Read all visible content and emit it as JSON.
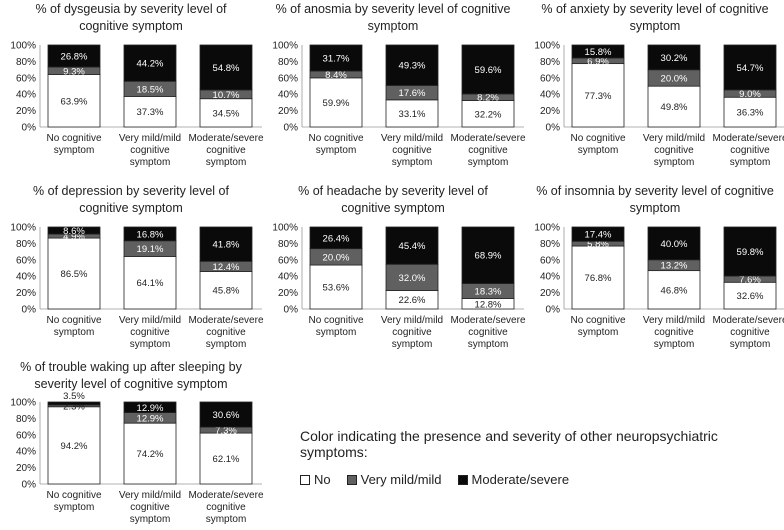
{
  "colors": {
    "no": "#ffffff",
    "mild": "#606060",
    "severe": "#0a0a0a",
    "border": "#222222"
  },
  "chart_data": [
    {
      "type": "bar",
      "stacked": true,
      "title": "% of dysgeusia by severity level of cognitive symptom",
      "title_lines": [
        "% of dysgeusia by severity level of",
        "cognitive symptom"
      ],
      "categories": [
        [
          "No cognitive",
          "symptom"
        ],
        [
          "Very mild/mild",
          "cognitive",
          "symptom"
        ],
        [
          "Moderate/severe",
          "cognitive",
          "symptom"
        ]
      ],
      "ylim": [
        0,
        100
      ],
      "yticks": [
        "0%",
        "20%",
        "40%",
        "60%",
        "80%",
        "100%"
      ],
      "series": [
        {
          "name": "No",
          "values": [
            63.9,
            37.3,
            34.5
          ],
          "labels": [
            "63.9%",
            "37.3%",
            "34.5%"
          ]
        },
        {
          "name": "Very mild/mild",
          "values": [
            9.3,
            18.5,
            10.7
          ],
          "labels": [
            "9.3%",
            "18.5%",
            "10.7%"
          ]
        },
        {
          "name": "Moderate/severe",
          "values": [
            26.8,
            44.2,
            54.8
          ],
          "labels": [
            "26.8%",
            "44.2%",
            "54.8%"
          ]
        }
      ]
    },
    {
      "type": "bar",
      "stacked": true,
      "title": "% of anosmia by severity level of cognitive symptom",
      "title_lines": [
        "% of anosmia by severity level of cognitive",
        "symptom"
      ],
      "categories": [
        [
          "No cognitive",
          "symptom"
        ],
        [
          "Very mild/mild",
          "cognitive",
          "symptom"
        ],
        [
          "Moderate/severe",
          "cognitive",
          "symptom"
        ]
      ],
      "ylim": [
        0,
        100
      ],
      "yticks": [
        "0%",
        "20%",
        "40%",
        "60%",
        "80%",
        "100%"
      ],
      "series": [
        {
          "name": "No",
          "values": [
            59.9,
            33.1,
            32.2
          ],
          "labels": [
            "59.9%",
            "33.1%",
            "32.2%"
          ]
        },
        {
          "name": "Very mild/mild",
          "values": [
            8.4,
            17.6,
            8.2
          ],
          "labels": [
            "8.4%",
            "17.6%",
            "8.2%"
          ]
        },
        {
          "name": "Moderate/severe",
          "values": [
            31.7,
            49.3,
            59.6
          ],
          "labels": [
            "31.7%",
            "49.3%",
            "59.6%"
          ]
        }
      ]
    },
    {
      "type": "bar",
      "stacked": true,
      "title": "% of anxiety by severity level of cognitive symptom",
      "title_lines": [
        "% of anxiety by severity level of cognitive",
        "symptom"
      ],
      "categories": [
        [
          "No cognitive",
          "symptom"
        ],
        [
          "Very mild/mild",
          "cognitive",
          "symptom"
        ],
        [
          "Moderate/severe",
          "cognitive",
          "symptom"
        ]
      ],
      "ylim": [
        0,
        100
      ],
      "yticks": [
        "0%",
        "20%",
        "40%",
        "60%",
        "80%",
        "100%"
      ],
      "series": [
        {
          "name": "No",
          "values": [
            77.3,
            49.8,
            36.3
          ],
          "labels": [
            "77.3%",
            "49.8%",
            "36.3%"
          ]
        },
        {
          "name": "Very mild/mild",
          "values": [
            6.9,
            20.0,
            9.0
          ],
          "labels": [
            "6.9%",
            "20.0%",
            "9.0%"
          ]
        },
        {
          "name": "Moderate/severe",
          "values": [
            15.8,
            30.2,
            54.7
          ],
          "labels": [
            "15.8%",
            "30.2%",
            "54.7%"
          ]
        }
      ]
    },
    {
      "type": "bar",
      "stacked": true,
      "title": "% of depression by severity level of cognitive symptom",
      "title_lines": [
        "% of depression by severity level of",
        "cognitive symptom"
      ],
      "categories": [
        [
          "No cognitive",
          "symptom"
        ],
        [
          "Very mild/mild",
          "cognitive",
          "symptom"
        ],
        [
          "Moderate/severe",
          "cognitive",
          "symptom"
        ]
      ],
      "ylim": [
        0,
        100
      ],
      "yticks": [
        "0%",
        "20%",
        "40%",
        "60%",
        "80%",
        "100%"
      ],
      "series": [
        {
          "name": "No",
          "values": [
            86.5,
            64.1,
            45.8
          ],
          "labels": [
            "86.5%",
            "64.1%",
            "45.8%"
          ]
        },
        {
          "name": "Very mild/mild",
          "values": [
            4.9,
            19.1,
            12.4
          ],
          "labels": [
            "4.9%",
            "19.1%",
            "12.4%"
          ]
        },
        {
          "name": "Moderate/severe",
          "values": [
            8.6,
            16.8,
            41.8
          ],
          "labels": [
            "8.6%",
            "16.8%",
            "41.8%"
          ]
        }
      ]
    },
    {
      "type": "bar",
      "stacked": true,
      "title": "% of headache by severity level of cognitive symptom",
      "title_lines": [
        "% of headache by severity level of",
        "cognitive symptom"
      ],
      "categories": [
        [
          "No cognitive",
          "symptom"
        ],
        [
          "Very mild/mild",
          "cognitive",
          "symptom"
        ],
        [
          "Moderate/severe",
          "cognitive",
          "symptom"
        ]
      ],
      "ylim": [
        0,
        100
      ],
      "yticks": [
        "0%",
        "20%",
        "40%",
        "60%",
        "80%",
        "100%"
      ],
      "series": [
        {
          "name": "No",
          "values": [
            53.6,
            22.6,
            12.8
          ],
          "labels": [
            "53.6%",
            "22.6%",
            "12.8%"
          ]
        },
        {
          "name": "Very mild/mild",
          "values": [
            20.0,
            32.0,
            18.3
          ],
          "labels": [
            "20.0%",
            "32.0%",
            "18.3%"
          ]
        },
        {
          "name": "Moderate/severe",
          "values": [
            26.4,
            45.4,
            68.9
          ],
          "labels": [
            "26.4%",
            "45.4%",
            "68.9%"
          ]
        }
      ]
    },
    {
      "type": "bar",
      "stacked": true,
      "title": "% of insomnia by severity level of cognitive symptom",
      "title_lines": [
        "% of insomnia by severity level of cognitive",
        "symptom"
      ],
      "categories": [
        [
          "No cognitive",
          "symptom"
        ],
        [
          "Very mild/mild",
          "cognitive",
          "symptom"
        ],
        [
          "Moderate/severe",
          "cognitive",
          "symptom"
        ]
      ],
      "ylim": [
        0,
        100
      ],
      "yticks": [
        "0%",
        "20%",
        "40%",
        "60%",
        "80%",
        "100%"
      ],
      "series": [
        {
          "name": "No",
          "values": [
            76.8,
            46.8,
            32.6
          ],
          "labels": [
            "76.8%",
            "46.8%",
            "32.6%"
          ]
        },
        {
          "name": "Very mild/mild",
          "values": [
            5.8,
            13.2,
            7.6
          ],
          "labels": [
            "5.8%",
            "13.2%",
            "7.6%"
          ]
        },
        {
          "name": "Moderate/severe",
          "values": [
            17.4,
            40.0,
            59.8
          ],
          "labels": [
            "17.4%",
            "40.0%",
            "59.8%"
          ]
        }
      ]
    },
    {
      "type": "bar",
      "stacked": true,
      "title": "% of trouble waking up after sleeping by severity level of cognitive symptom",
      "title_lines": [
        "% of trouble waking up after sleeping by",
        "severity level of cognitive symptom"
      ],
      "categories": [
        [
          "No cognitive",
          "symptom"
        ],
        [
          "Very mild/mild",
          "cognitive",
          "symptom"
        ],
        [
          "Moderate/severe",
          "cognitive",
          "symptom"
        ]
      ],
      "ylim": [
        0,
        100
      ],
      "yticks": [
        "0%",
        "20%",
        "40%",
        "60%",
        "80%",
        "100%"
      ],
      "series": [
        {
          "name": "No",
          "values": [
            94.2,
            74.2,
            62.1
          ],
          "labels": [
            "94.2%",
            "74.2%",
            "62.1%"
          ]
        },
        {
          "name": "Very mild/mild",
          "values": [
            2.3,
            12.9,
            7.3
          ],
          "labels": [
            "2.3%",
            "12.9%",
            "7.3%"
          ]
        },
        {
          "name": "Moderate/severe",
          "values": [
            3.5,
            12.9,
            30.6
          ],
          "labels": [
            "3.5%",
            "12.9%",
            "30.6%"
          ]
        }
      ]
    }
  ],
  "legend": {
    "title": "Color indicating the presence and severity of other neuropsychiatric symptoms:",
    "items": [
      {
        "label": "No",
        "color_key": "no"
      },
      {
        "label": "Very mild/mild",
        "color_key": "mild"
      },
      {
        "label": "Moderate/severe",
        "color_key": "severe"
      }
    ]
  }
}
